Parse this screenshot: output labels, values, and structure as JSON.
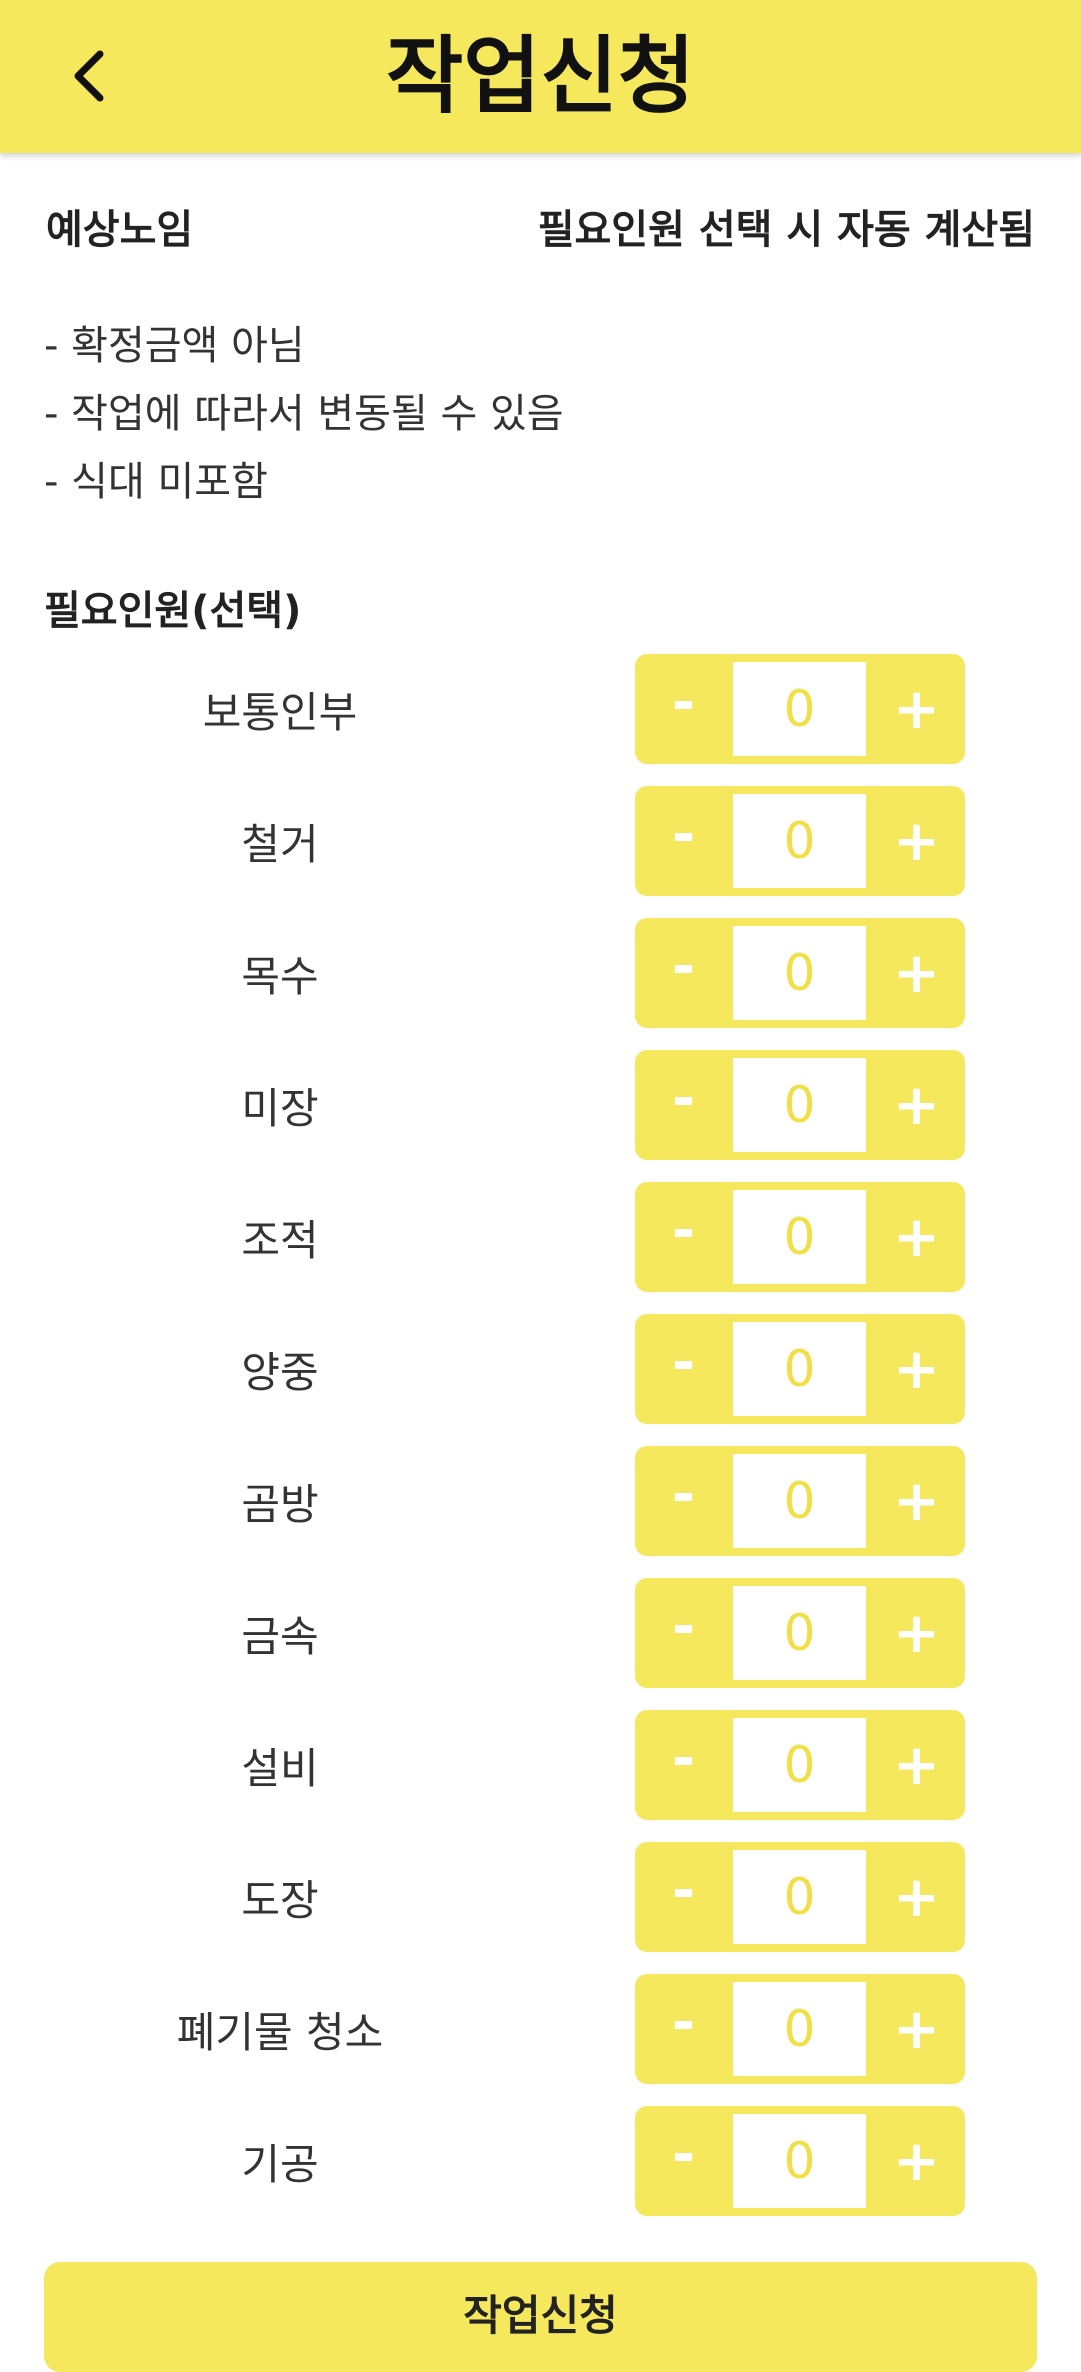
{
  "header": {
    "title": "작업신청",
    "back_icon": "chevron-left-icon",
    "color": "#F6E85C"
  },
  "wage": {
    "label": "예상노임",
    "value": "필요인원 선택 시 자동 계산됨"
  },
  "notes": [
    "- 확정금액 아님",
    "- 작업에 따라서 변동될 수 있음",
    "- 식대 미포함"
  ],
  "workers_section": {
    "label": "필요인원(선택)",
    "minus_label": "-",
    "plus_label": "+",
    "items": [
      {
        "name": "보통인부",
        "count": "0"
      },
      {
        "name": "철거",
        "count": "0"
      },
      {
        "name": "목수",
        "count": "0"
      },
      {
        "name": "미장",
        "count": "0"
      },
      {
        "name": "조적",
        "count": "0"
      },
      {
        "name": "양중",
        "count": "0"
      },
      {
        "name": "곰방",
        "count": "0"
      },
      {
        "name": "금속",
        "count": "0"
      },
      {
        "name": "설비",
        "count": "0"
      },
      {
        "name": "도장",
        "count": "0"
      },
      {
        "name": "폐기물 청소",
        "count": "0"
      },
      {
        "name": "기공",
        "count": "0"
      }
    ]
  },
  "submit": {
    "label": "작업신청"
  }
}
